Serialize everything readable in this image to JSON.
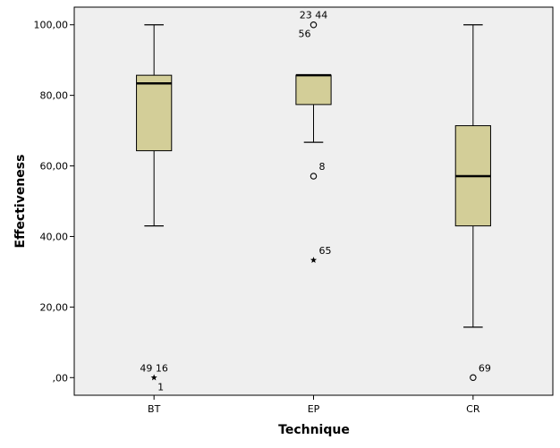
{
  "chart_data": {
    "type": "boxplot",
    "xlabel": "Technique",
    "ylabel": "Effectiveness",
    "ylim": [
      -5,
      105
    ],
    "yticks": [
      {
        "value": 0,
        "label": ",00"
      },
      {
        "value": 20,
        "label": "20,00"
      },
      {
        "value": 40,
        "label": "40,00"
      },
      {
        "value": 60,
        "label": "60,00"
      },
      {
        "value": 80,
        "label": "80,00"
      },
      {
        "value": 100,
        "label": "100,00"
      }
    ],
    "categories": [
      "BT",
      "EP",
      "CR"
    ],
    "boxes": [
      {
        "category": "BT",
        "min": 43,
        "q1": 64.3,
        "median": 83.4,
        "q3": 85.7,
        "max": 100
      },
      {
        "category": "EP",
        "min": 66.7,
        "q1": 77.4,
        "median": 85.7,
        "q3": 85.7,
        "max": 85.7
      },
      {
        "category": "CR",
        "min": 14.3,
        "q1": 43,
        "median": 57.1,
        "q3": 71.4,
        "max": 100
      }
    ],
    "outliers": [
      {
        "category": "BT",
        "value": 0,
        "marker": "star",
        "labels": [
          "49 16",
          "1"
        ]
      },
      {
        "category": "EP",
        "value": 100,
        "marker": "circle",
        "labels": [
          "23 44",
          "56"
        ]
      },
      {
        "category": "EP",
        "value": 57.1,
        "marker": "circle",
        "labels": [
          "8"
        ]
      },
      {
        "category": "EP",
        "value": 33.3,
        "marker": "star",
        "labels": [
          "65"
        ]
      },
      {
        "category": "CR",
        "value": 0,
        "marker": "circle",
        "labels": [
          "69"
        ]
      }
    ],
    "colors": {
      "box_fill": "#d3ce98",
      "plot_bg": "#efefef",
      "stroke": "#000000"
    },
    "grid": false
  }
}
